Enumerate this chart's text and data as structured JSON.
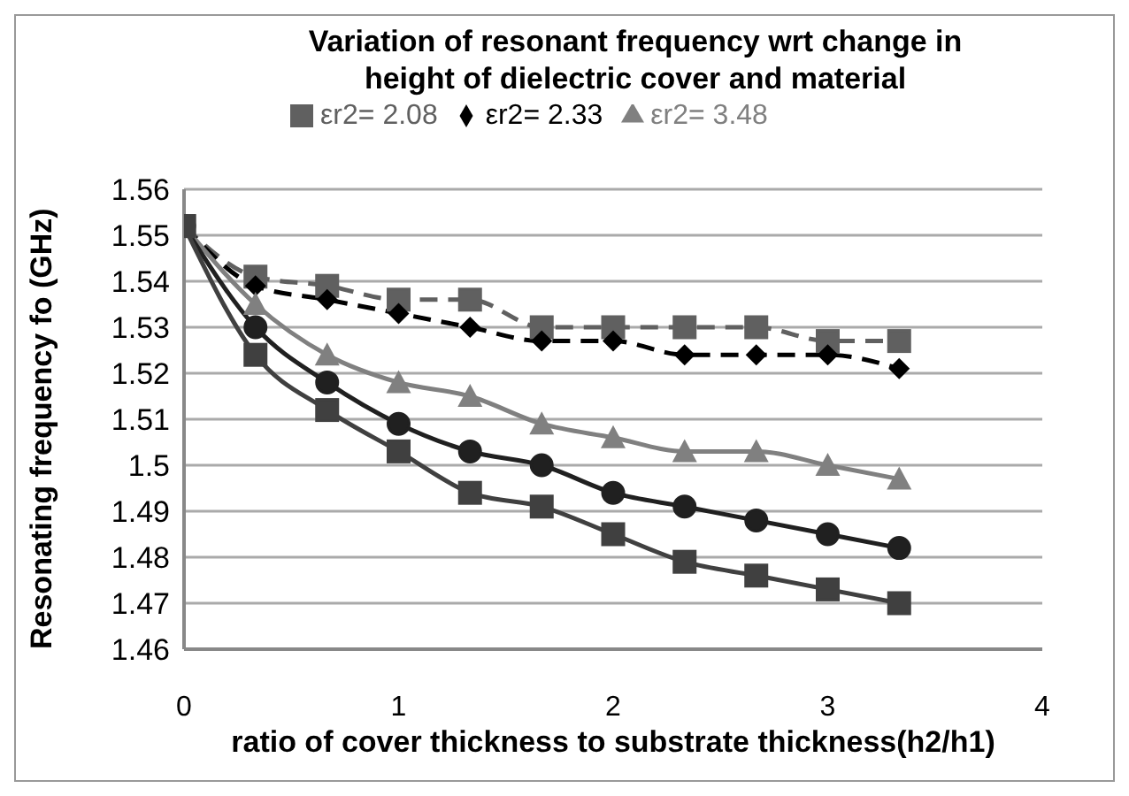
{
  "chart_data": {
    "type": "line",
    "title": "Variation of resonant frequency wrt change in height of dielectric cover and material",
    "xlabel": "ratio of cover thickness to substrate thickness(h2/h1)",
    "ylabel": "Resonating frequency fo (GHz)",
    "x": [
      0,
      0.333,
      0.667,
      1,
      1.333,
      1.667,
      2,
      2.333,
      2.667,
      3,
      3.333
    ],
    "series": [
      {
        "name": "εr2= 2.08",
        "color": "#606060",
        "marker": "square",
        "line_style": "dashed",
        "values": [
          1.552,
          1.541,
          1.539,
          1.536,
          1.536,
          1.53,
          1.53,
          1.53,
          1.53,
          1.527,
          1.527
        ]
      },
      {
        "name": "εr2= 2.33",
        "color": "#000000",
        "marker": "diamond",
        "line_style": "dashed",
        "values": [
          1.552,
          1.539,
          1.536,
          1.533,
          1.53,
          1.527,
          1.527,
          1.524,
          1.524,
          1.524,
          1.521
        ]
      },
      {
        "name": "εr2= 3.48",
        "color": "#808080",
        "marker": "triangle",
        "line_style": "solid",
        "values": [
          1.552,
          1.535,
          1.524,
          1.518,
          1.515,
          1.509,
          1.506,
          1.503,
          1.503,
          1.5,
          1.497
        ]
      },
      {
        "color": "#202020",
        "marker": "circle",
        "line_style": "solid",
        "values": [
          1.552,
          1.53,
          1.518,
          1.509,
          1.503,
          1.5,
          1.494,
          1.491,
          1.488,
          1.485,
          1.482
        ]
      },
      {
        "color": "#404040",
        "marker": "square",
        "line_style": "solid",
        "values": [
          1.552,
          1.524,
          1.512,
          1.503,
          1.494,
          1.491,
          1.485,
          1.479,
          1.476,
          1.473,
          1.47
        ]
      }
    ],
    "xlim": [
      0,
      4
    ],
    "xticks": [
      0,
      1,
      2,
      3,
      4
    ],
    "ylim": [
      1.46,
      1.56
    ],
    "yticks": [
      1.46,
      1.47,
      1.48,
      1.49,
      1.5,
      1.51,
      1.52,
      1.53,
      1.54,
      1.55,
      1.56
    ],
    "grid": "y",
    "legend": "top"
  }
}
